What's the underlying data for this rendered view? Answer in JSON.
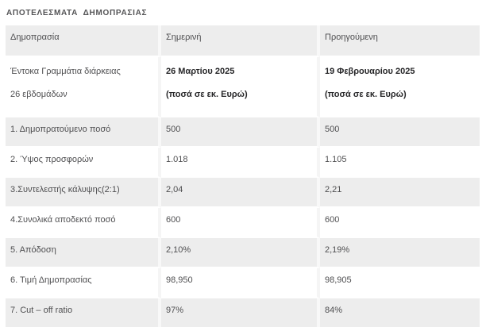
{
  "page": {
    "title": "ΑΠΟΤΕΛΕΣΜΑΤΑ  ΔΗΜΟΠΡΑΣΙΑΣ"
  },
  "colors": {
    "row_gray": "#ededed",
    "row_white": "#ffffff",
    "text": "#4f4f51",
    "text_bold": "#262628"
  },
  "table": {
    "headers": [
      "Δημοπρασία",
      "Σημερινή",
      "Προηγούμενη"
    ],
    "subheader": {
      "label_line1": "Έντοκα Γραμμάτια διάρκειας",
      "label_line2": "26 εβδομάδων",
      "current_line1": "26 Μαρτίου 2025",
      "current_line2": "(ποσά σε εκ. Ευρώ)",
      "previous_line1": "19 Φεβρουαρίου 2025",
      "previous_line2": "(ποσά σε εκ. Ευρώ)"
    },
    "rows": [
      {
        "label": "1. Δημοπρατούμενο ποσό",
        "current": "500",
        "previous": "500"
      },
      {
        "label": "2. Ύψος προσφορών",
        "current": "1.018",
        "previous": "1.105"
      },
      {
        "label": "3.Συντελεστής κάλυψης(2:1)",
        "current": "2,04",
        "previous": "2,21"
      },
      {
        "label": "4.Συνολικά αποδεκτό ποσό",
        "current": "600",
        "previous": "600"
      },
      {
        "label": "5. Απόδοση",
        "current": "2,10%",
        "previous": "2,19%"
      },
      {
        "label": "6. Τιμή Δημοπρασίας",
        "current": "98,950",
        "previous": "98,905"
      },
      {
        "label": "7. Cut – off ratio",
        "current": "97%",
        "previous": "84%"
      }
    ]
  }
}
